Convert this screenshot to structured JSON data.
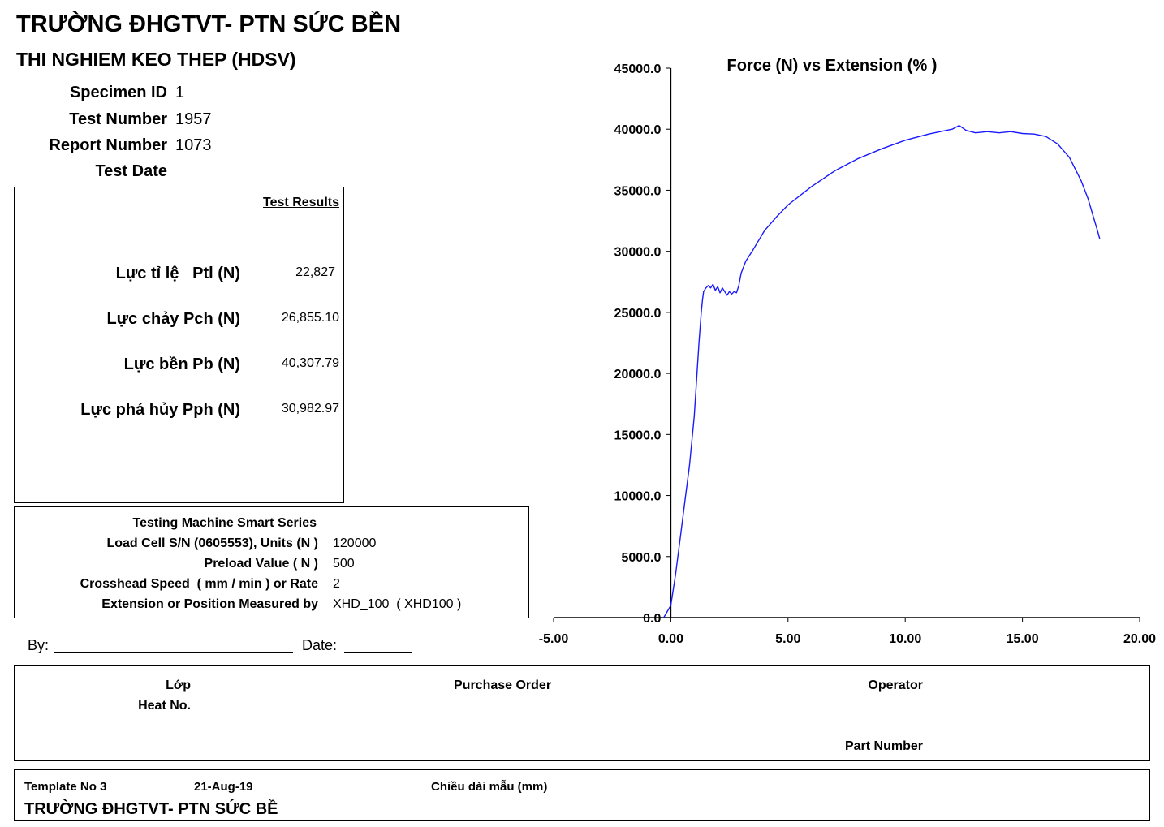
{
  "header": {
    "title": "TRƯỜNG ĐHGTVT- PTN SỨC BỀN",
    "subtitle": "THI NGHIEM KEO THEP (HDSV)"
  },
  "specimen": {
    "specimen_id_label": "Specimen ID",
    "specimen_id_value": "1",
    "test_number_label": "Test Number",
    "test_number_value": "1957",
    "report_number_label": "Report Number",
    "report_number_value": "1073",
    "test_date_label": "Test Date"
  },
  "results": {
    "heading": "Test Results",
    "rows": [
      {
        "label": "Lực tỉ lệ   Ptl (N)",
        "value": "22,827"
      },
      {
        "label": "Lực chảy Pch (N)",
        "value": "26,855.10"
      },
      {
        "label": "Lực bền Pb (N)",
        "value": "40,307.79"
      },
      {
        "label": "Lực phá hủy Pph (N)",
        "value": "30,982.97"
      }
    ]
  },
  "machine": {
    "title": "Testing Machine Smart Series",
    "rows": [
      {
        "label": "Load Cell S/N (0605553), Units (N )",
        "value": "120000"
      },
      {
        "label": "Preload Value ( N )",
        "value": "500"
      },
      {
        "label": "Crosshead Speed  ( mm / min ) or Rate",
        "value": "2"
      },
      {
        "label": "Extension or Position Measured by",
        "value": "XHD_100  ( XHD100 )"
      }
    ]
  },
  "signature": {
    "by_label": "By:",
    "date_label": "Date:"
  },
  "info": {
    "lop_label": "Lớp",
    "heat_label": "Heat No.",
    "po_label": "Purchase Order",
    "operator_label": "Operator",
    "part_label": "Part Number"
  },
  "footer": {
    "template": "Template No 3",
    "date": "21-Aug-19",
    "length_label": "Chiều dài mẫu (mm)",
    "name": "TRƯỜNG ĐHGTVT- PTN SỨC BỀ"
  },
  "chart_data": {
    "type": "line",
    "title": "Force (N) vs Extension (% )",
    "xlabel": "",
    "ylabel": "",
    "xlim": [
      -5,
      20
    ],
    "ylim": [
      0,
      45000
    ],
    "x_ticks": [
      "-5.00",
      "0.00",
      "5.00",
      "10.00",
      "15.00",
      "20.00"
    ],
    "y_ticks": [
      "0.0",
      "5000.0",
      "10000.0",
      "15000.0",
      "20000.0",
      "25000.0",
      "30000.0",
      "35000.0",
      "40000.0",
      "45000.0"
    ],
    "grid": false,
    "color": "#1a1aff",
    "series": [
      {
        "x": [
          -0.3,
          0.0,
          0.2,
          0.4,
          0.6,
          0.8,
          1.0,
          1.1,
          1.2,
          1.3,
          1.35,
          1.4,
          1.5,
          1.6,
          1.7,
          1.8,
          1.9,
          2.0,
          2.1,
          2.2,
          2.3,
          2.4,
          2.5,
          2.6,
          2.7,
          2.8,
          2.9,
          3.0,
          3.2,
          3.5,
          4.0,
          4.5,
          5.0,
          6.0,
          7.0,
          8.0,
          9.0,
          10.0,
          11.0,
          11.5,
          12.0,
          12.3,
          12.6,
          13.0,
          13.5,
          14.0,
          14.5,
          15.0,
          15.5,
          16.0,
          16.5,
          17.0,
          17.5,
          17.8,
          18.0,
          18.2,
          18.3
        ],
        "y": [
          0,
          1000,
          3500,
          6500,
          9500,
          12500,
          16500,
          19500,
          22500,
          25000,
          26000,
          26700,
          27000,
          27200,
          27000,
          27300,
          26800,
          27100,
          26600,
          27000,
          26700,
          26400,
          26700,
          26500,
          26700,
          26600,
          27200,
          28200,
          29200,
          30100,
          31700,
          32800,
          33800,
          35300,
          36600,
          37600,
          38400,
          39100,
          39600,
          39800,
          40000,
          40300,
          39900,
          39700,
          39800,
          39700,
          39800,
          39650,
          39600,
          39400,
          38800,
          37700,
          35800,
          34300,
          33000,
          31700,
          31000
        ]
      }
    ]
  }
}
